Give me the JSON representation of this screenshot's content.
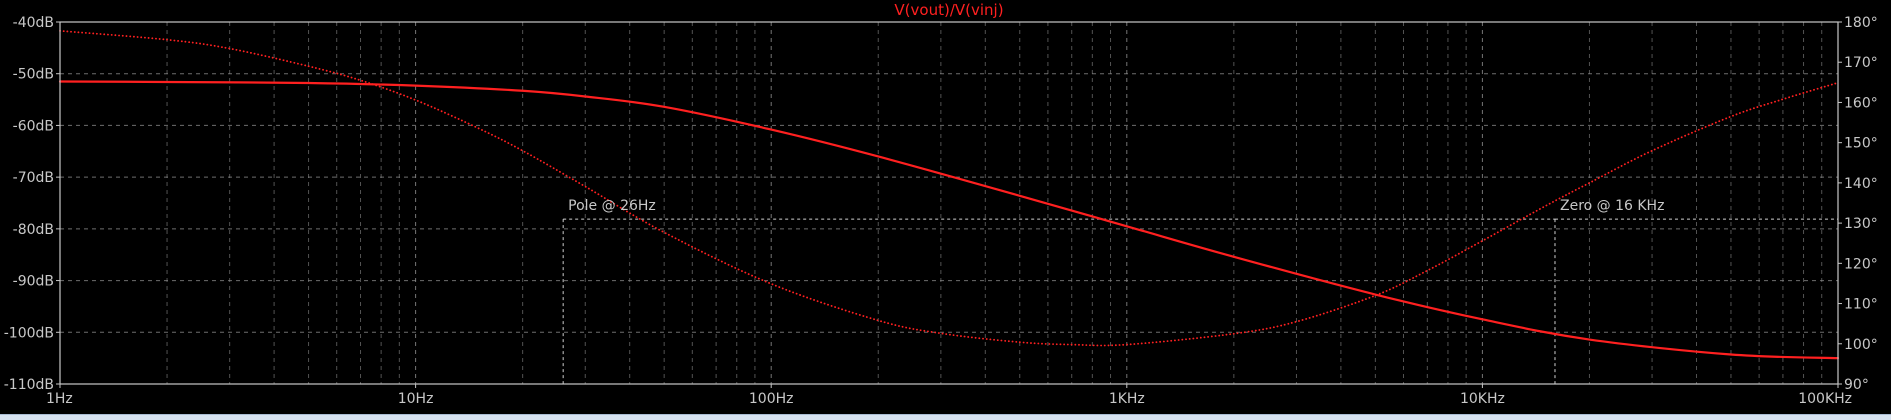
{
  "chart_data": {
    "type": "line",
    "title": "V(vout)/V(vinj)",
    "xscale": "log",
    "xlim": [
      1,
      100000
    ],
    "ylim_left": [
      -110,
      -40
    ],
    "ylim_right": [
      90,
      180
    ],
    "grid": true,
    "x_tick_labels": [
      "1Hz",
      "10Hz",
      "100Hz",
      "1KHz",
      "10KHz",
      "100KHz"
    ],
    "y_left_tick_labels": [
      "-40dB",
      "-50dB",
      "-60dB",
      "-70dB",
      "-80dB",
      "-90dB",
      "-100dB",
      "-110dB"
    ],
    "y_right_tick_labels": [
      "180°",
      "170°",
      "160°",
      "150°",
      "140°",
      "130°",
      "120°",
      "110°",
      "100°",
      "90°"
    ],
    "series": [
      {
        "style": "solid",
        "axis": "left",
        "color": "#ff2020",
        "x": [
          1,
          2,
          5,
          10,
          20,
          30,
          50,
          100,
          200,
          500,
          1000,
          2000,
          5000,
          10000,
          20000,
          50000,
          100000
        ],
        "y": [
          -51.5,
          -51.6,
          -51.8,
          -52.3,
          -53.3,
          -54.4,
          -56.4,
          -60.8,
          -66.0,
          -73.6,
          -79.5,
          -85.4,
          -92.7,
          -97.5,
          -101.4,
          -104.3,
          -105.0
        ]
      },
      {
        "style": "dotted",
        "axis": "right",
        "color": "#ff2020",
        "x": [
          1,
          2,
          3,
          5,
          7,
          10,
          15,
          20,
          30,
          50,
          100,
          200,
          300,
          500,
          700,
          1000,
          2000,
          3000,
          5000,
          7000,
          10000,
          15000,
          20000,
          30000,
          50000,
          70000,
          100000
        ],
        "y": [
          177.8,
          175.6,
          173.4,
          169.0,
          165.5,
          160.6,
          153.6,
          148.0,
          139.1,
          127.7,
          114.9,
          105.8,
          102.6,
          100.4,
          99.8,
          99.8,
          102.5,
          105.5,
          112.0,
          118.2,
          125.6,
          134.2,
          140.0,
          148.0,
          156.5,
          160.8,
          164.9
        ]
      }
    ],
    "annotations": [
      {
        "text": "Pole @ 26Hz",
        "x": 26,
        "y_right": 131
      },
      {
        "text": "Zero @ 16 KHz",
        "x": 16000,
        "y_right": 131
      }
    ]
  },
  "colors": {
    "background": "#000000",
    "grid": "#8a8a8a",
    "frame": "#c8c8c8",
    "trace": "#ff2020",
    "title": "#ff2020",
    "text": "#c8c8c8"
  }
}
